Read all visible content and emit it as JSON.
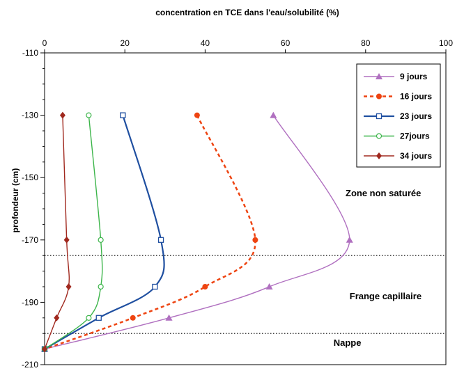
{
  "chart_data": {
    "type": "line",
    "title": "concentration en TCE dans l'eau/solubilité (%)",
    "ylabel": "profondeur (cm)",
    "xlim": [
      0,
      100
    ],
    "ylim": [
      -210,
      -110
    ],
    "x_ticks": [
      0,
      20,
      40,
      60,
      80,
      100
    ],
    "y_ticks": [
      -110,
      -130,
      -150,
      -170,
      -190,
      -210
    ],
    "x_axis_position": "top",
    "grid": false,
    "legend_position": "top-right",
    "series": [
      {
        "name": "9 jours",
        "color": "#b070c0",
        "marker": "triangle",
        "dash": "solid",
        "points": [
          [
            57,
            -130
          ],
          [
            76,
            -170
          ],
          [
            56,
            -185
          ],
          [
            31,
            -195
          ],
          [
            0,
            -205
          ]
        ]
      },
      {
        "name": "16 jours",
        "color": "#ee4411",
        "marker": "circle",
        "dash": "dashed",
        "points": [
          [
            38,
            -130
          ],
          [
            52.5,
            -170
          ],
          [
            40,
            -185
          ],
          [
            22,
            -195
          ],
          [
            0,
            -205
          ]
        ]
      },
      {
        "name": "23 jours",
        "color": "#1f4fa0",
        "marker": "square-open",
        "dash": "solid",
        "points": [
          [
            19.5,
            -130
          ],
          [
            29,
            -170
          ],
          [
            27.5,
            -185
          ],
          [
            13.5,
            -195
          ],
          [
            0,
            -205
          ]
        ]
      },
      {
        "name": "27jours",
        "color": "#3cb54a",
        "marker": "circle-open",
        "dash": "solid",
        "points": [
          [
            11,
            -130
          ],
          [
            14,
            -170
          ],
          [
            14,
            -185
          ],
          [
            11,
            -195
          ],
          [
            0,
            -205
          ]
        ]
      },
      {
        "name": "34 jours",
        "color": "#a0281e",
        "marker": "diamond",
        "dash": "solid",
        "points": [
          [
            4.5,
            -130
          ],
          [
            5.5,
            -170
          ],
          [
            6,
            -185
          ],
          [
            3,
            -195
          ],
          [
            0,
            -205
          ]
        ]
      }
    ],
    "reference_lines_y": [
      -175,
      -200
    ],
    "annotations": [
      {
        "text": "Zone non saturée",
        "x": 75,
        "y": -156
      },
      {
        "text": "Frange capillaire",
        "x": 76,
        "y": -189
      },
      {
        "text": "Nappe",
        "x": 72,
        "y": -204
      }
    ]
  }
}
